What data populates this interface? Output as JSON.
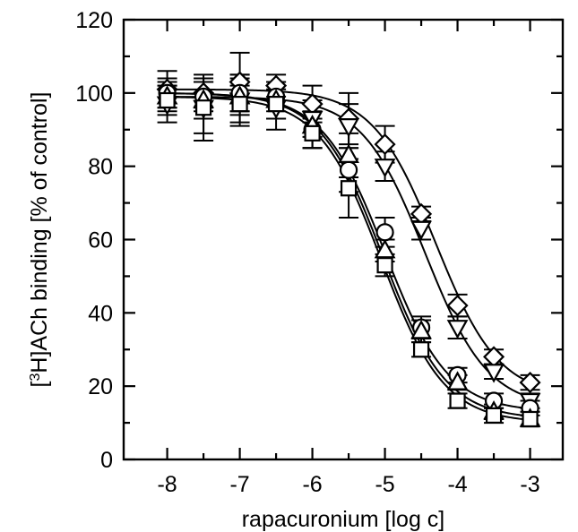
{
  "chart_data": {
    "type": "scatter",
    "title": "",
    "xlabel": "rapacuronium [log c]",
    "ylabel_parts": [
      "[",
      "3",
      "H]ACh binding [% of control]"
    ],
    "xlim": [
      -8.6,
      -2.55
    ],
    "ylim": [
      0,
      120
    ],
    "xticks": [
      -8,
      -7,
      -6,
      -5,
      -4,
      -3
    ],
    "yticks": [
      0,
      20,
      40,
      60,
      80,
      100,
      120
    ],
    "x": [
      -8,
      -7.5,
      -7,
      -6.5,
      -6,
      -5.5,
      -5,
      -4.5,
      -4,
      -3.5,
      -3
    ],
    "series": [
      {
        "marker": "diamond",
        "values": [
          101,
          100,
          103,
          102,
          97,
          93,
          86,
          67,
          42,
          28,
          21
        ],
        "errors": [
          5,
          4,
          8,
          3,
          5,
          7,
          5,
          2,
          3,
          2,
          2
        ],
        "fit": {
          "top": 101,
          "bottom": 17,
          "logIC50": -4.3,
          "hill": 1.0
        }
      },
      {
        "marker": "triangle-down",
        "values": [
          97,
          96,
          98,
          96,
          93,
          91,
          80,
          63,
          36,
          24,
          16
        ],
        "errors": [
          5,
          7,
          7,
          6,
          5,
          6,
          4,
          3,
          3,
          2,
          2
        ],
        "fit": {
          "top": 99,
          "bottom": 14,
          "logIC50": -4.45,
          "hill": 1.0
        }
      },
      {
        "marker": "circle",
        "values": [
          100,
          99,
          100,
          99,
          90,
          79,
          62,
          36,
          23,
          16,
          14
        ],
        "errors": [
          4,
          4,
          5,
          4,
          5,
          6,
          4,
          3,
          2,
          2,
          2
        ],
        "fit": {
          "top": 100,
          "bottom": 13,
          "logIC50": -5.0,
          "hill": 1.0
        }
      },
      {
        "marker": "triangle-up",
        "values": [
          99,
          98,
          99,
          98,
          91,
          83,
          57,
          35,
          21,
          13,
          11
        ],
        "errors": [
          4,
          5,
          5,
          5,
          6,
          6,
          3,
          3,
          2,
          2,
          2
        ],
        "fit": {
          "top": 100,
          "bottom": 11,
          "logIC50": -5.03,
          "hill": 1.0
        }
      },
      {
        "marker": "square",
        "values": [
          98,
          96,
          97,
          97,
          89,
          74,
          53,
          30,
          16,
          12,
          11
        ],
        "errors": [
          4,
          9,
          5,
          4,
          4,
          8,
          3,
          2,
          2,
          2,
          2
        ],
        "fit": {
          "top": 99,
          "bottom": 10,
          "logIC50": -5.05,
          "hill": 1.0
        }
      }
    ],
    "grid": false,
    "legend": "none"
  }
}
